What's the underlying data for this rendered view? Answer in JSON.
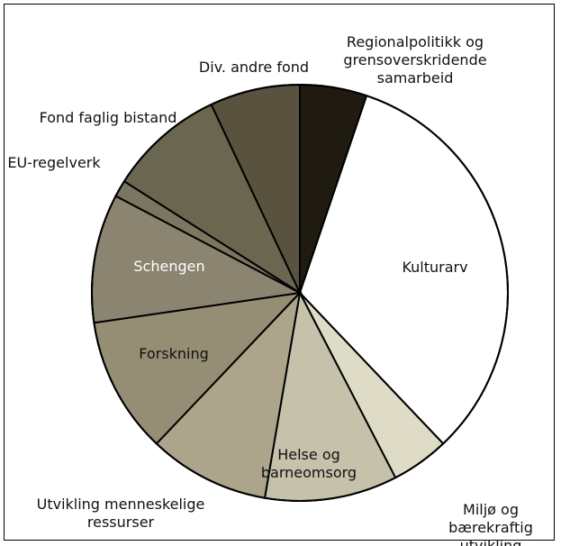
{
  "chart_data": {
    "type": "pie",
    "categories": [
      "Regionalpolitikk og grensoverskridende samarbeid",
      "Kulturarv",
      "Miljø og bærekraftig utvikling",
      "Helse og barneomsorg",
      "Utvikling menneskelige ressurser",
      "Forskning",
      "Schengen",
      "EU-regelverk",
      "Fond faglig bistand",
      "Div. andre fond"
    ],
    "values": [
      5.2,
      32.7,
      4.5,
      10.3,
      9.4,
      10.6,
      10,
      1.3,
      9,
      7
    ],
    "colors": [
      "#1f1b10",
      "#ffffff",
      "#dedbc6",
      "#c5c1ab",
      "#aca58c",
      "#958e75",
      "#8b8470",
      "#7b7661",
      "#6b6650",
      "#58523f"
    ]
  }
}
